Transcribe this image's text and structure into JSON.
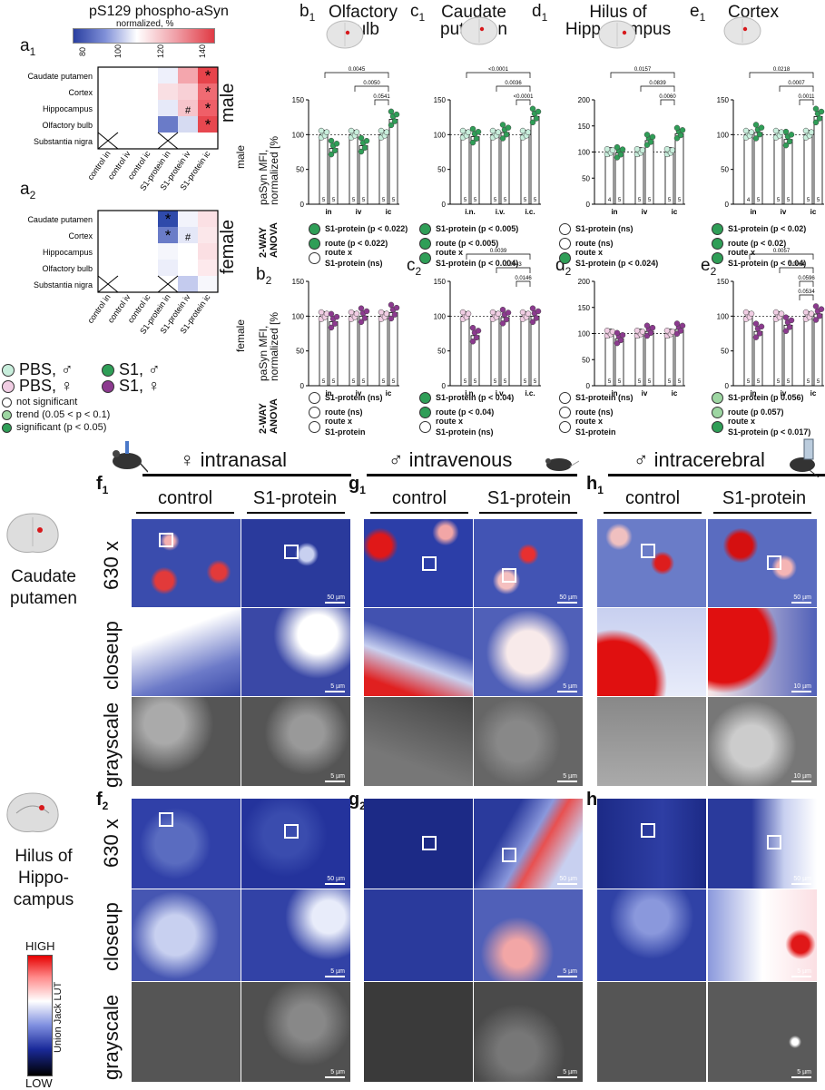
{
  "heatmap_title": "pS129 phospho-aSyn",
  "heatmap_subtitle": "normalized, %",
  "colorbar_ticks": [
    "80",
    "100",
    "120",
    "140"
  ],
  "panel_a1": "a",
  "panel_a1_sub": "1",
  "panel_a2": "a",
  "panel_a2_sub": "2",
  "heat_rows": [
    "Caudate putamen",
    "Cortex",
    "Hippocampus",
    "Olfactory bulb",
    "Substantia nigra"
  ],
  "heat_cols": [
    "control in",
    "control iv",
    "control ic",
    "S1-protein in",
    "S1-protein iv",
    "S1-protein ic"
  ],
  "sex_male": "male",
  "sex_female": "female",
  "legend": {
    "pbs_m": "PBS, ♂",
    "pbs_f": "PBS, ♀",
    "s1_m": "S1, ♂",
    "s1_f": "S1, ♀",
    "ns": "not significant",
    "trend": "trend  (0.05 < p < 0.1)",
    "sig": "significant (p < 0.05)"
  },
  "col_headers": [
    {
      "letter": "b",
      "sub": "1",
      "title": "Olfactory\nbulb"
    },
    {
      "letter": "c",
      "sub": "1",
      "title": "Caudate\nputamen"
    },
    {
      "letter": "d",
      "sub": "1",
      "title": "Hilus of\nHippocampus"
    },
    {
      "letter": "e",
      "sub": "1",
      "title": "Cortex"
    }
  ],
  "row2_letters": [
    {
      "letter": "b",
      "sub": "2"
    },
    {
      "letter": "c",
      "sub": "2"
    },
    {
      "letter": "d",
      "sub": "2"
    },
    {
      "letter": "e",
      "sub": "2"
    }
  ],
  "ylabel_male": "paSyn MFI,\nnormalized [%",
  "ylabel_female": "paSyn MFI,\nnormalized [%",
  "row_label_male": "male",
  "row_label_female": "female",
  "anova_label": "2-WAY\nANOVA",
  "anova_male": [
    [
      "S1-protein (p < 0.022)",
      "route (p < 0.022)",
      "route x\nS1-protein (ns)"
    ],
    [
      "S1-protein (p < 0.005)",
      "route (p < 0.005)",
      "route x\nS1-protein (p < 0.004)"
    ],
    [
      "S1-protein (ns)",
      "route (ns)",
      "route x\nS1-protein (p < 0.024)"
    ],
    [
      "S1-protein (p < 0.02)",
      "route (p < 0.02)",
      "route x\nS1-protein (p < 0.04)"
    ]
  ],
  "anova_male_dots": [
    [
      "g",
      "g",
      "w"
    ],
    [
      "g",
      "g",
      "g"
    ],
    [
      "w",
      "w",
      "g"
    ],
    [
      "g",
      "g",
      "g"
    ]
  ],
  "anova_female": [
    [
      "S1-protein (ns)",
      "route (ns)",
      "route x\nS1-protein"
    ],
    [
      "S1-protein (p < 0.04)",
      "route (p < 0.04)",
      "route x\nS1-protein (ns)"
    ],
    [
      "S1-protein (ns)",
      "route (ns)",
      "route x\nS1-protein"
    ],
    [
      "S1-protein (p 0.056)",
      "route (p 0.057)",
      "route x\nS1-protein (p < 0.017)"
    ]
  ],
  "anova_female_dots": [
    [
      "w",
      "w",
      "w"
    ],
    [
      "g",
      "g",
      "w"
    ],
    [
      "w",
      "w",
      "w"
    ],
    [
      "lg",
      "lg",
      "g"
    ]
  ],
  "chart_data": [
    {
      "type": "bar",
      "panel": "b1",
      "categories": [
        "in",
        "iv",
        "ic"
      ],
      "series": [
        {
          "name": "PBS",
          "values": [
            100,
            100,
            100
          ]
        },
        {
          "name": "S1",
          "values": [
            80,
            84,
            122
          ]
        }
      ],
      "ylim": [
        0,
        150
      ],
      "yticks": [
        "0",
        "50",
        "100",
        "150"
      ],
      "n": [
        "5",
        "5",
        "5",
        "5",
        "5",
        "5"
      ],
      "pvals": [
        "0.0045",
        "0.0050",
        "0.0541"
      ],
      "sex": "male"
    },
    {
      "type": "bar",
      "panel": "c1",
      "categories": [
        "i.n.",
        "i.v.",
        "i.c."
      ],
      "series": [
        {
          "name": "PBS",
          "values": [
            100,
            100,
            100
          ]
        },
        {
          "name": "S1",
          "values": [
            97,
            103,
            126
          ]
        }
      ],
      "ylim": [
        0,
        150
      ],
      "yticks": [
        "0",
        "50",
        "100",
        "150"
      ],
      "n": [
        "5",
        "5",
        "5",
        "5",
        "5",
        "5"
      ],
      "pvals": [
        "<0.0001",
        "0.0036",
        "<0.0001"
      ],
      "sex": "male"
    },
    {
      "type": "bar",
      "panel": "d1",
      "categories": [
        "in",
        "iv",
        "ic"
      ],
      "series": [
        {
          "name": "PBS",
          "values": [
            100,
            100,
            100
          ]
        },
        {
          "name": "S1",
          "values": [
            98,
            122,
            135
          ]
        }
      ],
      "ylim": [
        0,
        200
      ],
      "yticks": [
        "0",
        "50",
        "100",
        "150",
        "200"
      ],
      "n": [
        "4",
        "5",
        "5",
        "5",
        "5",
        "5"
      ],
      "pvals": [
        "0.0157",
        "0.0839",
        "0.0060"
      ],
      "sex": "male"
    },
    {
      "type": "bar",
      "panel": "e1",
      "categories": [
        "in",
        "iv",
        "ic"
      ],
      "series": [
        {
          "name": "PBS",
          "values": [
            100,
            100,
            100
          ]
        },
        {
          "name": "S1",
          "values": [
            103,
            93,
            126
          ]
        }
      ],
      "ylim": [
        0,
        150
      ],
      "yticks": [
        "0",
        "50",
        "100",
        "150"
      ],
      "n": [
        "4",
        "5",
        "5",
        "5",
        "5",
        "5"
      ],
      "pvals": [
        "0.0218",
        "0.0007",
        "0.0011"
      ],
      "sex": "male"
    },
    {
      "type": "bar",
      "panel": "b2",
      "categories": [
        "in",
        "iv",
        "ic"
      ],
      "series": [
        {
          "name": "PBS",
          "values": [
            100,
            100,
            100
          ]
        },
        {
          "name": "S1",
          "values": [
            92,
            100,
            105
          ]
        }
      ],
      "ylim": [
        0,
        150
      ],
      "yticks": [
        "0",
        "50",
        "100",
        "150"
      ],
      "n": [
        "5",
        "5",
        "5",
        "5",
        "5",
        "5"
      ],
      "pvals": [],
      "sex": "female"
    },
    {
      "type": "bar",
      "panel": "c2",
      "categories": [
        "i.n.",
        "i.v.",
        "i.c."
      ],
      "series": [
        {
          "name": "PBS",
          "values": [
            100,
            100,
            100
          ]
        },
        {
          "name": "S1",
          "values": [
            72,
            98,
            100
          ]
        }
      ],
      "ylim": [
        0,
        150
      ],
      "yticks": [
        "0",
        "50",
        "100",
        "150"
      ],
      "n": [
        "5",
        "5",
        "5",
        "5",
        "5",
        "5"
      ],
      "pvals": [
        "0.0039",
        "0.0043",
        "0.0146"
      ],
      "sex": "female"
    },
    {
      "type": "bar",
      "panel": "d2",
      "categories": [
        "in",
        "iv",
        "ic"
      ],
      "series": [
        {
          "name": "PBS",
          "values": [
            100,
            100,
            100
          ]
        },
        {
          "name": "S1",
          "values": [
            90,
            104,
            108
          ]
        }
      ],
      "ylim": [
        0,
        200
      ],
      "yticks": [
        "0",
        "50",
        "100",
        "150",
        "200"
      ],
      "n": [
        "5",
        "5",
        "5",
        "5",
        "5",
        "5"
      ],
      "pvals": [],
      "sex": "female"
    },
    {
      "type": "bar",
      "panel": "e2",
      "categories": [
        "in",
        "iv",
        "ic"
      ],
      "series": [
        {
          "name": "PBS",
          "values": [
            100,
            100,
            100
          ]
        },
        {
          "name": "S1",
          "values": [
            78,
            87,
            103
          ]
        }
      ],
      "ylim": [
        0,
        150
      ],
      "yticks": [
        "0",
        "50",
        "100",
        "150"
      ],
      "n": [
        "5",
        "5",
        "5",
        "5",
        "5",
        "5"
      ],
      "pvals": [
        "0.0057",
        "0.0064",
        "0.0596",
        "0.0534"
      ],
      "sex": "female"
    }
  ],
  "routes": [
    "♀ intranasal",
    "♂ intravenous",
    "♂ intracerebral"
  ],
  "micro_letters": [
    {
      "l": "f",
      "s": "1"
    },
    {
      "l": "g",
      "s": "1"
    },
    {
      "l": "h",
      "s": "1"
    },
    {
      "l": "f",
      "s": "2"
    },
    {
      "l": "g",
      "s": "2"
    },
    {
      "l": "h",
      "s": "2"
    }
  ],
  "col_control": "control",
  "col_s1": "S1-protein",
  "region1": "Caudate\nputamen",
  "region2": "Hilus of\nHippo-\ncampus",
  "row_labels": [
    "630 x",
    "closeup",
    "grayscale"
  ],
  "scalebars": {
    "s50": "50 µm",
    "s5": "5 µm",
    "s10": "10 µm"
  },
  "lut_high": "HIGH",
  "lut_low": "LOW",
  "lut_name": "Union Jack LUT",
  "colors": {
    "male_green": "#2f9e57",
    "female_purple": "#8c3a8f",
    "pbs_m": "#c8eedc",
    "pbs_f": "#f0cde3",
    "red": "#d7191c",
    "blue": "#2c3fa6"
  }
}
